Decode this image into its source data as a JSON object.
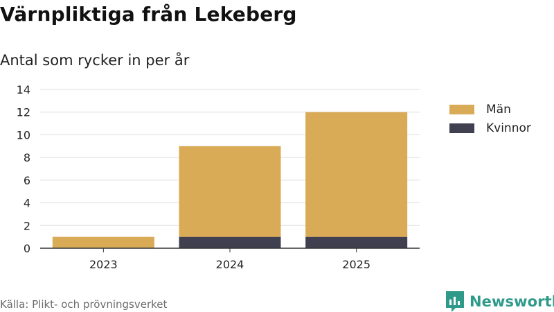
{
  "title": "Värnpliktiga från Lekeberg",
  "subtitle": "Antal som rycker in per år",
  "source": "Källa: Plikt- och prövningsverket",
  "brand": "Newsworthy",
  "colors": {
    "man": "#d9ab56",
    "kvinnor": "#414050",
    "grid": "#dddddd",
    "axis": "#333333",
    "brand": "#2f9a8a"
  },
  "chart_data": {
    "type": "bar",
    "stacked": true,
    "title": "Värnpliktiga från Lekeberg",
    "subtitle": "Antal som rycker in per år",
    "xlabel": "",
    "ylabel": "",
    "categories": [
      "2023",
      "2024",
      "2025"
    ],
    "series": [
      {
        "name": "Kvinnor",
        "values": [
          0,
          1,
          1
        ],
        "color": "#414050"
      },
      {
        "name": "Män",
        "values": [
          1,
          8,
          11
        ],
        "color": "#d9ab56"
      }
    ],
    "ylim": [
      0,
      14
    ],
    "yticks": [
      0,
      2,
      4,
      6,
      8,
      10,
      12,
      14
    ],
    "grid": true,
    "legend_position": "right"
  },
  "legend": [
    {
      "label": "Män",
      "color": "#d9ab56"
    },
    {
      "label": "Kvinnor",
      "color": "#414050"
    }
  ]
}
